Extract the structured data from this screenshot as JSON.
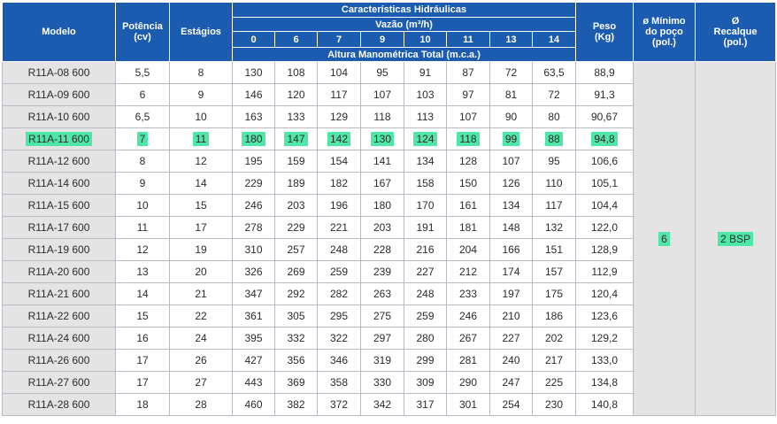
{
  "header": {
    "model": "Modelo",
    "power": [
      "Potência",
      "(cv)"
    ],
    "stages": "Estágios",
    "hydraulic": "Características Hidráulicas",
    "flow": "Vazão (m³/h)",
    "flow_values": [
      "0",
      "6",
      "7",
      "9",
      "10",
      "11",
      "13",
      "14"
    ],
    "head": "Altura Manométrica Total (m.c.a.)",
    "weight": [
      "Peso",
      "(Kg)"
    ],
    "well_min": [
      "ø Mínimo",
      "do poço",
      "(pol.)"
    ],
    "discharge": [
      "Ø",
      "Recalque",
      "(pol.)"
    ]
  },
  "merged": {
    "well_min": "6",
    "discharge": "2 BSP"
  },
  "highlighted_row": 3,
  "rows": [
    [
      "R11A-08 600",
      "5,5",
      "8",
      "130",
      "108",
      "104",
      "95",
      "91",
      "87",
      "72",
      "63,5",
      "88,9"
    ],
    [
      "R11A-09 600",
      "6",
      "9",
      "146",
      "120",
      "117",
      "107",
      "103",
      "97",
      "81",
      "72",
      "91,3"
    ],
    [
      "R11A-10 600",
      "6,5",
      "10",
      "163",
      "133",
      "129",
      "118",
      "113",
      "107",
      "90",
      "80",
      "90,67"
    ],
    [
      "R11A-11 600",
      "7",
      "11",
      "180",
      "147",
      "142",
      "130",
      "124",
      "118",
      "99",
      "88",
      "94,8"
    ],
    [
      "R11A-12 600",
      "8",
      "12",
      "195",
      "159",
      "154",
      "141",
      "134",
      "128",
      "107",
      "95",
      "106,6"
    ],
    [
      "R11A-14 600",
      "9",
      "14",
      "229",
      "189",
      "182",
      "167",
      "158",
      "150",
      "126",
      "110",
      "105,1"
    ],
    [
      "R11A-15 600",
      "10",
      "15",
      "246",
      "203",
      "196",
      "180",
      "170",
      "161",
      "134",
      "117",
      "104,4"
    ],
    [
      "R11A-17 600",
      "11",
      "17",
      "278",
      "229",
      "221",
      "203",
      "191",
      "181",
      "148",
      "132",
      "122,0"
    ],
    [
      "R11A-19 600",
      "12",
      "19",
      "310",
      "257",
      "248",
      "228",
      "216",
      "204",
      "166",
      "151",
      "128,9"
    ],
    [
      "R11A-20 600",
      "13",
      "20",
      "326",
      "269",
      "259",
      "239",
      "227",
      "212",
      "174",
      "157",
      "112,9"
    ],
    [
      "R11A-21 600",
      "14",
      "21",
      "347",
      "292",
      "282",
      "263",
      "248",
      "233",
      "197",
      "175",
      "120,4"
    ],
    [
      "R11A-22 600",
      "15",
      "22",
      "361",
      "305",
      "295",
      "275",
      "259",
      "246",
      "210",
      "186",
      "123,6"
    ],
    [
      "R11A-24 600",
      "16",
      "24",
      "395",
      "332",
      "322",
      "297",
      "280",
      "267",
      "227",
      "202",
      "129,2"
    ],
    [
      "R11A-26 600",
      "17",
      "26",
      "427",
      "356",
      "346",
      "319",
      "299",
      "281",
      "240",
      "217",
      "133,0"
    ],
    [
      "R11A-27 600",
      "17",
      "27",
      "443",
      "369",
      "358",
      "330",
      "309",
      "290",
      "247",
      "225",
      "134,8"
    ],
    [
      "R11A-28 600",
      "18",
      "28",
      "460",
      "382",
      "372",
      "342",
      "317",
      "301",
      "254",
      "230",
      "140,8"
    ]
  ]
}
